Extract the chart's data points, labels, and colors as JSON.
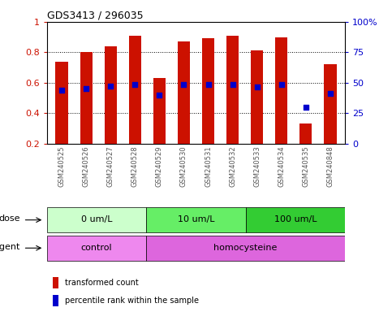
{
  "title": "GDS3413 / 296035",
  "samples": [
    "GSM240525",
    "GSM240526",
    "GSM240527",
    "GSM240528",
    "GSM240529",
    "GSM240530",
    "GSM240531",
    "GSM240532",
    "GSM240533",
    "GSM240534",
    "GSM240535",
    "GSM240848"
  ],
  "red_values": [
    0.74,
    0.8,
    0.84,
    0.91,
    0.63,
    0.87,
    0.89,
    0.91,
    0.81,
    0.9,
    0.33,
    0.72
  ],
  "blue_values": [
    0.55,
    0.56,
    0.58,
    0.59,
    0.52,
    0.59,
    0.59,
    0.59,
    0.57,
    0.59,
    0.44,
    0.53
  ],
  "ylim_left": [
    0.2,
    1.0
  ],
  "red_color": "#CC1100",
  "blue_color": "#0000CC",
  "bar_width": 0.5,
  "dose_groups": [
    {
      "label": "0 um/L",
      "start": 0,
      "end": 4,
      "color": "#ccffcc"
    },
    {
      "label": "10 um/L",
      "start": 4,
      "end": 8,
      "color": "#66ee66"
    },
    {
      "label": "100 um/L",
      "start": 8,
      "end": 12,
      "color": "#33cc33"
    }
  ],
  "agent_groups": [
    {
      "label": "control",
      "start": 0,
      "end": 4,
      "color": "#ee88ee"
    },
    {
      "label": "homocysteine",
      "start": 4,
      "end": 12,
      "color": "#dd66dd"
    }
  ],
  "dose_label": "dose",
  "agent_label": "agent",
  "legend_red": "transformed count",
  "legend_blue": "percentile rank within the sample",
  "tick_color_left": "#CC1100",
  "tick_color_right": "#0000CC",
  "xlabel_color": "#555555"
}
